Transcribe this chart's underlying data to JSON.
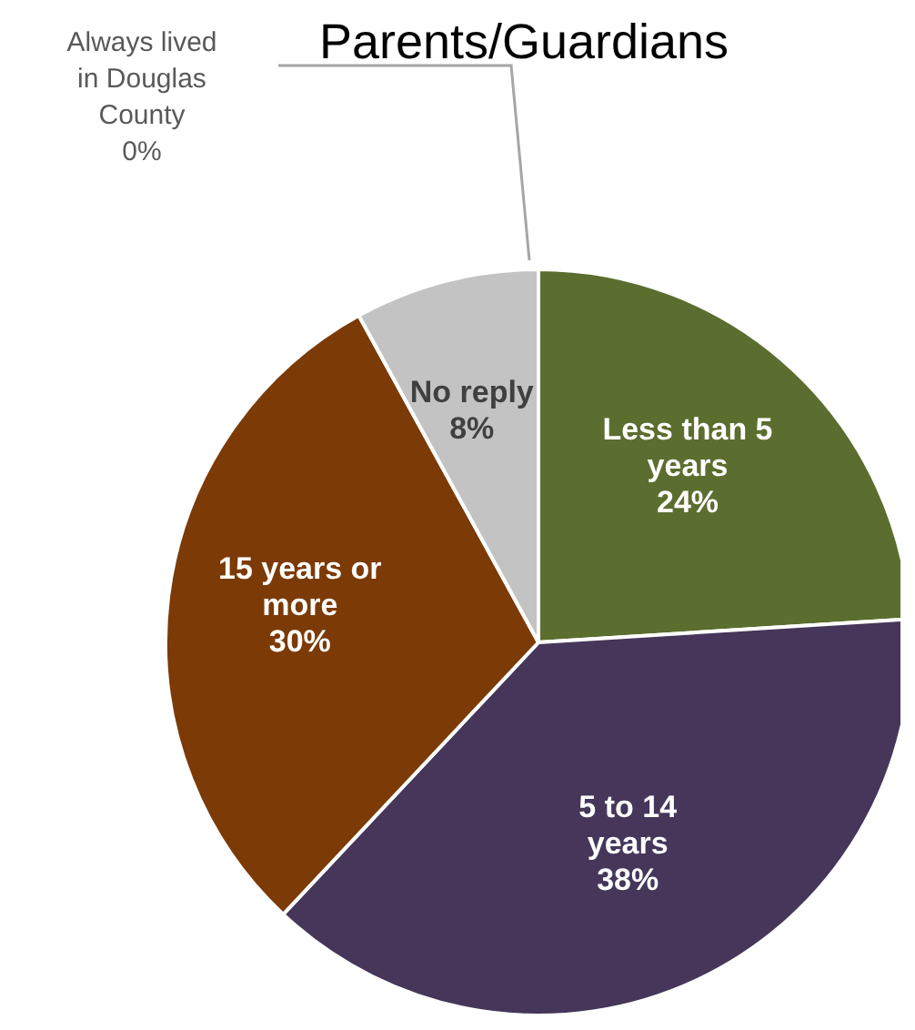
{
  "chart_data": {
    "type": "pie",
    "title": "Parents/Guardians",
    "categories": [
      "Less than 5 years",
      "5 to 14 years",
      "15 years or more",
      "No reply",
      "Always lived in Douglas County"
    ],
    "values": [
      24,
      38,
      30,
      8,
      0
    ],
    "value_labels": [
      "24%",
      "38%",
      "30%",
      "8%",
      "0%"
    ],
    "colors": [
      "#5b6e2f",
      "#45365a",
      "#7b3a06",
      "#c3c3c3",
      "#bfbfbf"
    ]
  }
}
